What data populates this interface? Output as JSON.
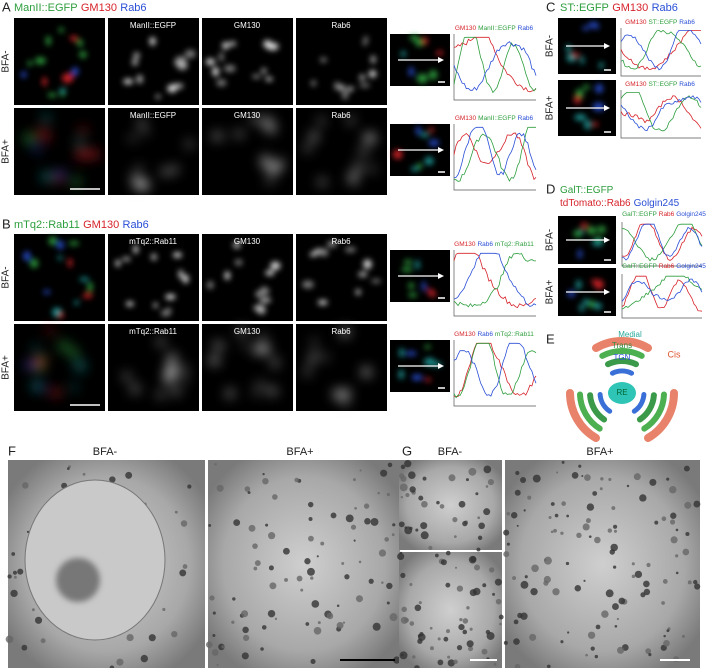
{
  "A": {
    "letter": "A",
    "title": [
      {
        "text": "ManII::EGFP",
        "color": "#2e9e3e"
      },
      {
        "text": "GM130",
        "color": "#d6232a"
      },
      {
        "text": "Rab6",
        "color": "#2a4fd6"
      }
    ],
    "rows": [
      "BFA-",
      "BFA+"
    ],
    "channels": [
      "ManII::EGFP",
      "GM130",
      "Rab6"
    ],
    "profile_legend": [
      {
        "text": "GM130",
        "color": "#d6232a"
      },
      {
        "text": "ManII::EGFP",
        "color": "#2e9e3e"
      },
      {
        "text": "Rab6",
        "color": "#2a4fd6"
      }
    ]
  },
  "B": {
    "letter": "B",
    "title": [
      {
        "text": "mTq2::Rab11",
        "color": "#2e9e3e"
      },
      {
        "text": "GM130",
        "color": "#d6232a"
      },
      {
        "text": "Rab6",
        "color": "#2a4fd6"
      }
    ],
    "rows": [
      "BFA-",
      "BFA+"
    ],
    "channels": [
      "mTq2::Rab11",
      "GM130",
      "Rab6"
    ],
    "profile_legend": [
      {
        "text": "GM130",
        "color": "#d6232a"
      },
      {
        "text": "Rab6",
        "color": "#2a4fd6"
      },
      {
        "text": "mTq2::Rab11",
        "color": "#2e9e3e"
      }
    ]
  },
  "C": {
    "letter": "C",
    "title": [
      {
        "text": "ST::EGFP",
        "color": "#2e9e3e"
      },
      {
        "text": "GM130",
        "color": "#d6232a"
      },
      {
        "text": "Rab6",
        "color": "#2a4fd6"
      }
    ],
    "rows": [
      "BFA-",
      "BFA+"
    ],
    "profile_legend": [
      {
        "text": "GM130",
        "color": "#d6232a"
      },
      {
        "text": "ST::EGFP",
        "color": "#2e9e3e"
      },
      {
        "text": "Rab6",
        "color": "#2a4fd6"
      }
    ]
  },
  "D": {
    "letter": "D",
    "title_lines": [
      [
        {
          "text": "GalT::EGFP",
          "color": "#2e9e3e"
        }
      ],
      [
        {
          "text": "tdTomato::Rab6",
          "color": "#d6232a"
        },
        {
          "text": "Golgin245",
          "color": "#2a4fd6"
        }
      ]
    ],
    "rows": [
      "BFA-",
      "BFA+"
    ],
    "profile_legend": [
      {
        "text": "GalT::EGFP",
        "color": "#2e9e3e"
      },
      {
        "text": "Rab6",
        "color": "#d6232a"
      },
      {
        "text": "Golgin245",
        "color": "#2a4fd6"
      }
    ]
  },
  "E": {
    "letter": "E",
    "layers": {
      "medial": "Medial",
      "trans": "Trans",
      "tgn": "TGN",
      "cis": "Cis"
    },
    "center": "RE"
  },
  "F": {
    "letter": "F",
    "labels": [
      "BFA-",
      "BFA+"
    ]
  },
  "G": {
    "letter": "G",
    "labels": [
      "BFA-",
      "BFA+"
    ]
  }
}
